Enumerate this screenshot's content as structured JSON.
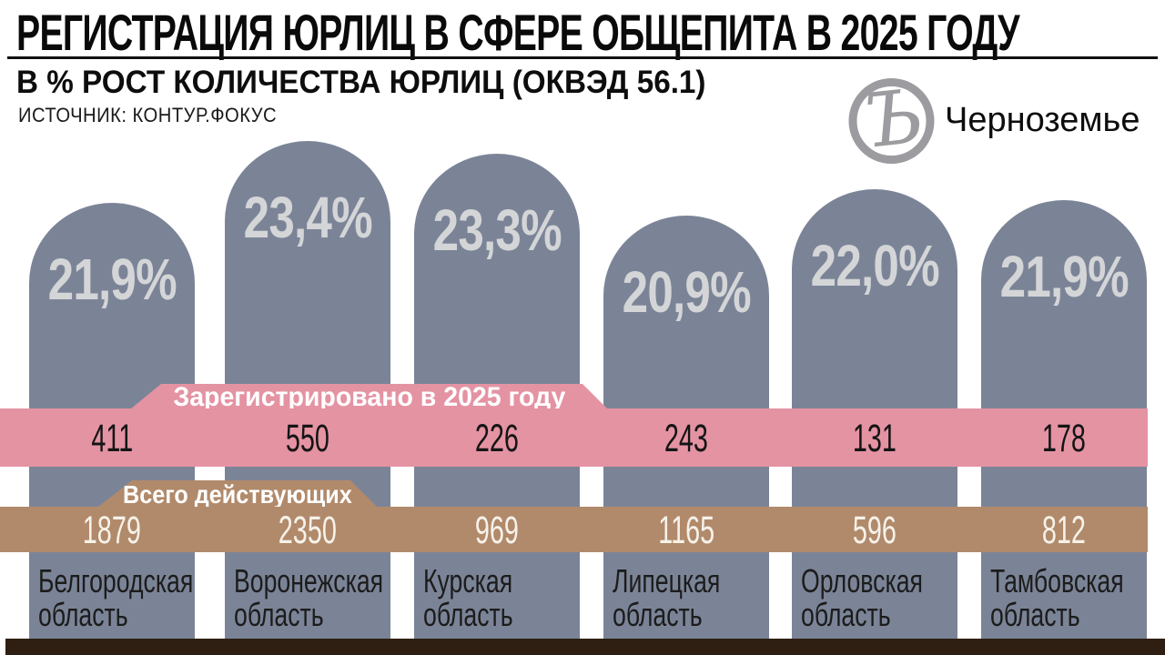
{
  "header": {
    "title": "РЕГИСТРАЦИЯ ЮРЛИЦ В СФЕРЕ ОБЩЕПИТА В 2025 ГОДУ",
    "subtitle": "В % РОСТ КОЛИЧЕСТВА ЮРЛИЦ (ОКВЭД 56.1)",
    "source": "ИСТОЧНИК: КОНТУР.ФОКУС",
    "brand": {
      "logo_glyph": "Ъ",
      "edition": "Черноземье"
    }
  },
  "bands": {
    "registered": {
      "label": "Зарегистрировано в 2025 году",
      "color": "#e493a3"
    },
    "active": {
      "label": "Всего действующих",
      "color": "#b18a6b"
    }
  },
  "colors": {
    "bar": "#7b8497",
    "percent_text": "#d4d5d7",
    "registered_band": "#e493a3",
    "active_band": "#b18a6b",
    "bottom_strip": "#2e1f12",
    "logo_gray": "#9c9ca0"
  },
  "chart_data": {
    "type": "bar",
    "title": "РЕГИСТРАЦИЯ ЮРЛИЦ В СФЕРЕ ОБЩЕПИТА В 2025 ГОДУ",
    "subtitle": "В % РОСТ КОЛИЧЕСТВА ЮРЛИЦ (ОКВЭД 56.1)",
    "source": "ИСТОЧНИК: КОНТУР.ФОКУС",
    "categories": [
      "Белгородская область",
      "Воронежская область",
      "Курская область",
      "Липецкая область",
      "Орловская область",
      "Тамбовская область"
    ],
    "category_lines": [
      [
        "Белгородская",
        "область"
      ],
      [
        "Воронежская",
        "область"
      ],
      [
        "Курская",
        "область"
      ],
      [
        "Липецкая",
        "область"
      ],
      [
        "Орловская",
        "область"
      ],
      [
        "Тамбовская",
        "область"
      ]
    ],
    "series": [
      {
        "name": "Рост количества юрлиц, %",
        "values": [
          21.9,
          23.4,
          23.3,
          20.9,
          22.0,
          21.9
        ],
        "labels": [
          "21,9%",
          "23,4%",
          "23,3%",
          "20,9%",
          "22,0%",
          "21,9%"
        ]
      },
      {
        "name": "Зарегистрировано в 2025 году",
        "values": [
          411,
          550,
          226,
          243,
          131,
          178
        ],
        "labels": [
          "411",
          "550",
          "226",
          "243",
          "131",
          "178"
        ]
      },
      {
        "name": "Всего действующих",
        "values": [
          1879,
          2350,
          969,
          1165,
          596,
          812
        ],
        "labels": [
          "1879",
          "2350",
          "969",
          "1165",
          "596",
          "812"
        ]
      }
    ],
    "legend_position": "inline-tabs",
    "grid": false
  }
}
